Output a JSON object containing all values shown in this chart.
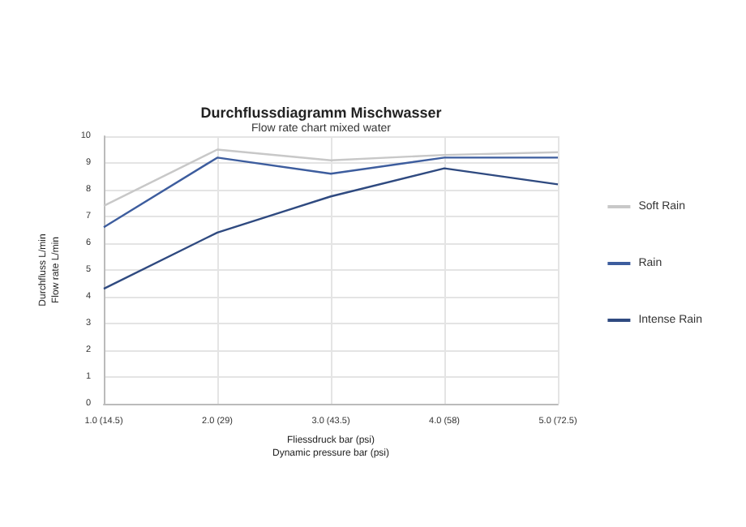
{
  "chart_data": {
    "type": "line",
    "title": "Durchflussdiagramm Mischwasser",
    "subtitle": "Flow rate chart mixed water",
    "xlabel": "Fliessdruck bar (psi)\nDynamic pressure bar (psi)",
    "ylabel": "Durchfluss L/min\nFlow rate L/min",
    "categories": [
      "1.0 (14.5)",
      "2.0 (29)",
      "3.0 (43.5)",
      "4.0 (58)",
      "5.0 (72.5)"
    ],
    "series": [
      {
        "name": "Soft Rain",
        "color": "#c8c8c8",
        "values": [
          7.4,
          9.5,
          9.1,
          9.3,
          9.4
        ]
      },
      {
        "name": "Rain",
        "color": "#3d5d9e",
        "values": [
          6.6,
          9.2,
          8.6,
          9.2,
          9.2
        ]
      },
      {
        "name": "Intense Rain",
        "color": "#2f4a80",
        "values": [
          4.3,
          6.4,
          7.75,
          8.8,
          8.2
        ]
      }
    ],
    "ylim": [
      0,
      10
    ],
    "yticks": [
      0,
      1,
      2,
      3,
      4,
      5,
      6,
      7,
      8,
      9,
      10
    ],
    "grid": true,
    "legend": "right",
    "marker": "none",
    "line_style": "solid"
  }
}
